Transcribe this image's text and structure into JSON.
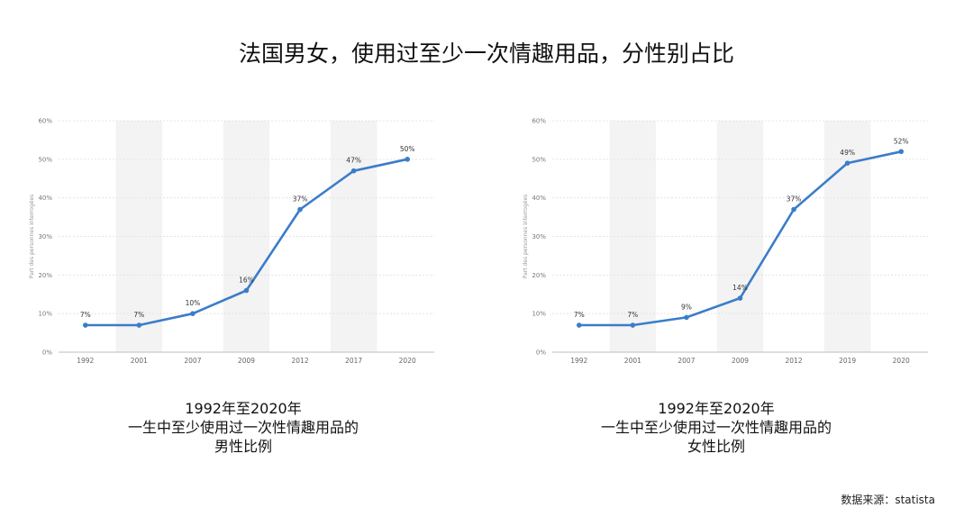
{
  "title": "法国男女，使用过至少一次情趣用品，分性别占比",
  "chart_data": [
    {
      "type": "line",
      "ylabel": "Part des personnes interrogées",
      "ylim": [
        0,
        60
      ],
      "yticks": [
        "0%",
        "10%",
        "20%",
        "30%",
        "40%",
        "50%",
        "60%"
      ],
      "categories": [
        "1992",
        "2001",
        "2007",
        "2009",
        "2012",
        "2017",
        "2020"
      ],
      "series": [
        {
          "values": [
            7,
            7,
            10,
            16,
            37,
            47,
            50
          ],
          "labels": [
            "7%",
            "7%",
            "10%",
            "16%",
            "37%",
            "47%",
            "50%"
          ]
        }
      ],
      "grid": true,
      "line_color": "#3a7dc9"
    },
    {
      "type": "line",
      "ylabel": "Part des personnes interrogées",
      "ylim": [
        0,
        60
      ],
      "yticks": [
        "0%",
        "10%",
        "20%",
        "30%",
        "40%",
        "50%",
        "60%"
      ],
      "categories": [
        "1992",
        "2001",
        "2007",
        "2009",
        "2012",
        "2019",
        "2020"
      ],
      "series": [
        {
          "values": [
            7,
            7,
            9,
            14,
            37,
            49,
            52
          ],
          "labels": [
            "7%",
            "7%",
            "9%",
            "14%",
            "37%",
            "49%",
            "52%"
          ]
        }
      ],
      "grid": true,
      "line_color": "#3a7dc9"
    }
  ],
  "captions": [
    {
      "line1": "1992年至2020年",
      "line2": "一生中至少使用过一次性情趣用品的",
      "line3": "男性比例"
    },
    {
      "line1": "1992年至2020年",
      "line2": "一生中至少使用过一次性情趣用品的",
      "line3": "女性比例"
    }
  ],
  "source": "数据来源：statista"
}
